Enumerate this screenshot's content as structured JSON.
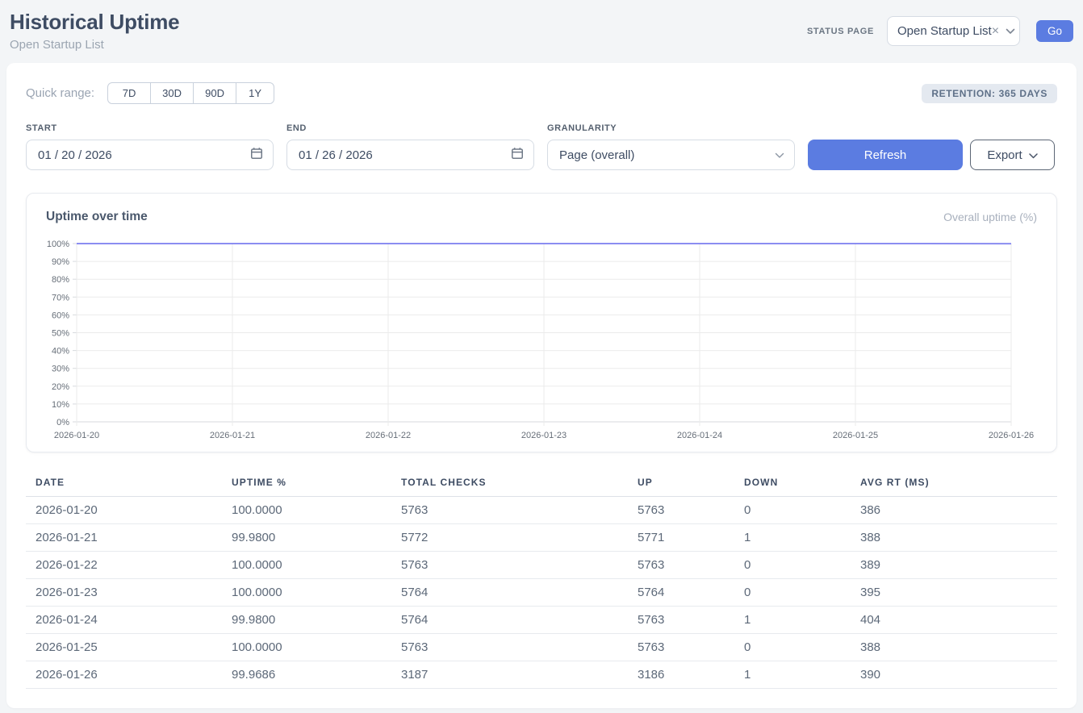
{
  "header": {
    "title": "Historical Uptime",
    "subtitle": "Open Startup List",
    "status_page_label": "STATUS PAGE",
    "status_page_select": {
      "value": "Open Startup List",
      "clear_icon": "×"
    },
    "go_label": "Go"
  },
  "controls": {
    "quick_range_label": "Quick range:",
    "quick_range_options": [
      "7D",
      "30D",
      "90D",
      "1Y"
    ],
    "retention_badge": "RETENTION: 365 DAYS",
    "start": {
      "label": "START",
      "value": "01 / 20 / 2026"
    },
    "end": {
      "label": "END",
      "value": "01 / 26 / 2026"
    },
    "granularity": {
      "label": "GRANULARITY",
      "value": "Page (overall)"
    },
    "refresh_label": "Refresh",
    "export_label": "Export"
  },
  "chart": {
    "title": "Uptime over time",
    "legend": "Overall uptime (%)"
  },
  "chart_data": {
    "type": "line",
    "title": "Uptime over time",
    "x": [
      "2026-01-20",
      "2026-01-21",
      "2026-01-22",
      "2026-01-23",
      "2026-01-24",
      "2026-01-25",
      "2026-01-26"
    ],
    "series": [
      {
        "name": "Overall uptime (%)",
        "values": [
          100.0,
          99.98,
          100.0,
          100.0,
          99.98,
          100.0,
          99.9686
        ]
      }
    ],
    "xlabel": "",
    "ylabel": "",
    "ylim": [
      0,
      100
    ],
    "y_tick_step": 10,
    "y_tick_suffix": "%",
    "grid": true,
    "legend_position": "top-right",
    "line_color": "#8b8df1"
  },
  "table": {
    "columns": [
      "DATE",
      "UPTIME %",
      "TOTAL CHECKS",
      "UP",
      "DOWN",
      "AVG RT (MS)"
    ],
    "rows": [
      [
        "2026-01-20",
        "100.0000",
        "5763",
        "5763",
        "0",
        "386"
      ],
      [
        "2026-01-21",
        "99.9800",
        "5772",
        "5771",
        "1",
        "388"
      ],
      [
        "2026-01-22",
        "100.0000",
        "5763",
        "5763",
        "0",
        "389"
      ],
      [
        "2026-01-23",
        "100.0000",
        "5764",
        "5764",
        "0",
        "395"
      ],
      [
        "2026-01-24",
        "99.9800",
        "5764",
        "5763",
        "1",
        "404"
      ],
      [
        "2026-01-25",
        "100.0000",
        "5763",
        "5763",
        "0",
        "388"
      ],
      [
        "2026-01-26",
        "99.9686",
        "3187",
        "3186",
        "1",
        "390"
      ]
    ]
  },
  "colors": {
    "accent_blue": "#5b7ce1",
    "line_purple": "#8b8df1",
    "grid_gray": "#ebebeb"
  }
}
